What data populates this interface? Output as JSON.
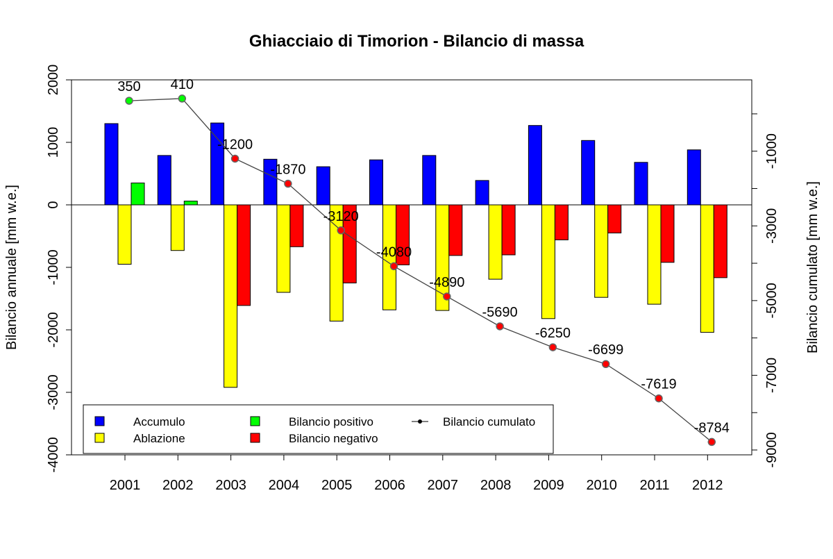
{
  "chart_data": {
    "type": "bar",
    "title": "Ghiacciaio di Timorion - Bilancio di massa",
    "ylabel": "Bilancio annuale [mm w.e.]",
    "y2label": "Bilancio cumulato [mm w.e.]",
    "ylim": [
      -4000,
      2000
    ],
    "yticks": [
      -4000,
      -3000,
      -2000,
      -1000,
      0,
      1000,
      2000
    ],
    "y2lim": [
      -9130,
      910
    ],
    "y2ticks": [
      0,
      -1000,
      -2000,
      -3000,
      -4000,
      -5000,
      -6000,
      -7000,
      -8000,
      -9000
    ],
    "y2ticklabels": [
      -1000,
      -3000,
      -5000,
      -7000,
      -9000
    ],
    "categories": [
      "2001",
      "2002",
      "2003",
      "2004",
      "2005",
      "2006",
      "2007",
      "2008",
      "2009",
      "2010",
      "2011",
      "2012"
    ],
    "series": [
      {
        "name": "Accumulo",
        "color": "#0000ff",
        "values": [
          1300,
          790,
          1310,
          730,
          610,
          720,
          790,
          390,
          1270,
          1030,
          680,
          880
        ]
      },
      {
        "name": "Ablazione",
        "color": "#ffff00",
        "values": [
          -950,
          -730,
          -2920,
          -1400,
          -1860,
          -1680,
          -1690,
          -1190,
          -1820,
          -1480,
          -1590,
          -2040
        ]
      },
      {
        "values": [
          350,
          60,
          -1610,
          -670,
          -1250,
          -960,
          -810,
          -800,
          -560,
          -450,
          -920,
          -1165
        ]
      },
      {
        "name": "Bilancio cumulato",
        "axis": "right",
        "values": [
          350,
          410,
          -1200,
          -1870,
          -3120,
          -4080,
          -4890,
          -5690,
          -6250,
          -6699,
          -7619,
          -8784
        ]
      }
    ],
    "positive_color": "#00ff00",
    "negative_color": "#ff0000",
    "legend": {
      "placement": "bottom-left",
      "entries": [
        {
          "label": "Accumulo",
          "color": "#0000ff",
          "kind": "box"
        },
        {
          "label": "Ablazione",
          "color": "#ffff00",
          "kind": "box"
        },
        {
          "label": "Bilancio positivo",
          "color": "#00ff00",
          "kind": "box"
        },
        {
          "label": "Bilancio negativo",
          "color": "#ff0000",
          "kind": "box"
        },
        {
          "label": "Bilancio cumulato",
          "color": "#000000",
          "kind": "line-point"
        }
      ]
    },
    "grid": false
  }
}
